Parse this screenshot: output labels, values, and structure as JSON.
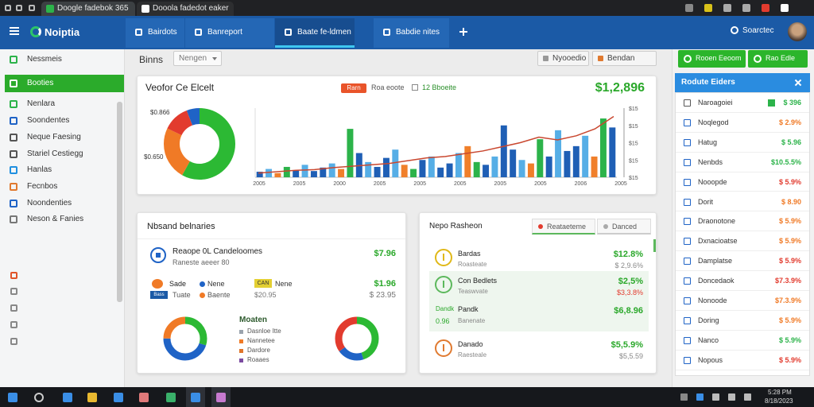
{
  "browser": {
    "tabs": [
      "Doogle fadebok 365",
      "Dooola fadedot eaker"
    ]
  },
  "header": {
    "logo": "Noiptia",
    "tabs": [
      "Bairdots",
      "Banreport",
      "Baate fe-ldmen",
      "Babdie nites"
    ],
    "active_tab": 2,
    "search": "Soarctec"
  },
  "sidebar": {
    "items": [
      "Nessmeis",
      "Booties",
      "Nenlara",
      "Soondentes",
      "Neque Faesing",
      "Stariel Cestiegg",
      "Hanlas",
      "Fecnbos",
      "Noondenties",
      "Neson & Fanies"
    ],
    "active": 1,
    "icon_colors": [
      "#2cb34a",
      "#ffffff",
      "#2cb34a",
      "#1f63c6",
      "#555555",
      "#555555",
      "#1f8fe0",
      "#e07a30",
      "#1f63c6",
      "#777777"
    ]
  },
  "toolbar": {
    "label": "Binns",
    "dropdown": "Nengen",
    "buttons": [
      "Nyooedio",
      "Bendan"
    ]
  },
  "overview": {
    "title": "Veofor Ce Elcelt",
    "legend": [
      "Rarn",
      "Roa eoote",
      "12 Bboeite"
    ],
    "total": "$1,2,896",
    "donut_labels": [
      "$0.866",
      "$0.650"
    ],
    "donut": {
      "values": [
        58,
        24,
        12,
        6
      ],
      "colors": [
        "#2cb934",
        "#f07a26",
        "#e23b2e",
        "#1f63c6"
      ]
    },
    "bars": {
      "values": [
        8,
        12,
        6,
        15,
        10,
        18,
        9,
        14,
        20,
        12,
        70,
        35,
        22,
        15,
        28,
        40,
        18,
        12,
        25,
        30,
        14,
        20,
        35,
        45,
        22,
        18,
        30,
        75,
        40,
        25,
        20,
        55,
        30,
        68,
        38,
        45,
        60,
        30,
        85,
        72
      ],
      "colors": [
        "#1f5fb5",
        "#56aee6",
        "#f07f2a",
        "#2cb34a",
        "#1f5fb5",
        "#56aee6",
        "#1f5fb5"
      ]
    },
    "line": [
      6,
      8,
      10,
      11,
      14,
      16,
      18,
      20,
      24,
      28,
      30,
      34,
      38,
      44,
      50,
      58,
      54,
      60,
      70,
      88
    ],
    "line_color": "#c9472f",
    "ylim": [
      0,
      100
    ],
    "y_labels": [
      "$15",
      "$15",
      "$15",
      "$15",
      "$15"
    ],
    "x_labels": [
      "2005",
      "2005",
      "2000",
      "2005",
      "2005",
      "2005",
      "2005",
      "2005",
      "2006",
      "2005"
    ]
  },
  "balances": {
    "title": "Nbsand belnaries",
    "row1": {
      "name": "Reaope 0L Candeloomes",
      "sub": "Raneste aeeer 80",
      "value": "$7.96"
    },
    "row2": {
      "name": "Sade",
      "tag": "Nene",
      "chip": "CAN",
      "chip_text": "Nene",
      "badge": "Bass",
      "sub": "Tuate",
      "sub2": "Baente",
      "sub3": "$20.95",
      "value": "$1.96",
      "value2": "$ 23.95"
    },
    "legend_title": "Moaten",
    "legend": [
      {
        "name": "Dasnloe Itte",
        "color": "#9aa3ad"
      },
      {
        "name": "Nannetee",
        "color": "#f07a26"
      },
      {
        "name": "Dardore",
        "color": "#e0752a"
      },
      {
        "name": "Roaaes",
        "color": "#7b4aa0"
      }
    ],
    "donut_left": {
      "values": [
        30,
        45,
        25
      ],
      "colors": [
        "#2cb934",
        "#1f63c6",
        "#f07a26"
      ]
    },
    "donut_right": {
      "values": [
        45,
        20,
        35
      ],
      "colors": [
        "#2cb934",
        "#1f63c6",
        "#e23b2e"
      ]
    }
  },
  "history": {
    "title": "Nepo Rasheon",
    "buttons": [
      "Reataeteme",
      "Danced"
    ],
    "rows": [
      {
        "name": "Bardas",
        "sub": "Roasteate",
        "value": "$12.8%",
        "value2": "$ 2,9.6%",
        "value2_color": "#888888",
        "ring": "#e0b818"
      },
      {
        "name": "Con Bedlets",
        "sub": "Teaswvate",
        "value": "$2,5%",
        "value2": "$3,3.8%",
        "value2_color": "#e23b2e",
        "ring": "#5cb85c"
      },
      {
        "name": "Danado",
        "sub": "Raesteale",
        "value": "$5,5.9%",
        "value2": "$5,5.59",
        "value2_color": "#888888",
        "ring": "#e07a30"
      }
    ],
    "extra": {
      "tag": "Dandk",
      "tag2": "0.96",
      "name": "Pandk",
      "sub": "Banenate",
      "value": "$6,8.96"
    }
  },
  "panel": {
    "buttons": [
      "Rooen Eeoom",
      "Rao Edle"
    ],
    "title": "Rodute Eiders",
    "rows": [
      {
        "name": "Naroagoiei",
        "value": "$ 396",
        "color": "#2cb34a"
      },
      {
        "name": "Noqlegod",
        "value": "$ 2.9%",
        "color": "#f07a26"
      },
      {
        "name": "Hatug",
        "value": "$ 5.96",
        "color": "#2cb34a"
      },
      {
        "name": "Nenbds",
        "value": "$10.5.5%",
        "color": "#2cb34a"
      },
      {
        "name": "Nooopde",
        "value": "$ 5.9%",
        "color": "#e23b2e"
      },
      {
        "name": "Dorit",
        "value": "$ 8.90",
        "color": "#f07a26"
      },
      {
        "name": "Draonotone",
        "value": "$ 5.9%",
        "color": "#f07a26"
      },
      {
        "name": "Dxnacioatse",
        "value": "$ 5.9%",
        "color": "#f07a26"
      },
      {
        "name": "Damplatse",
        "value": "$ 5.9%",
        "color": "#e23b2e"
      },
      {
        "name": "Doncedaok",
        "value": "$7.3.9%",
        "color": "#e23b2e"
      },
      {
        "name": "Nonoode",
        "value": "$7.3.9%",
        "color": "#f07a26"
      },
      {
        "name": "Doring",
        "value": "$ 5.9%",
        "color": "#f07a26"
      },
      {
        "name": "Nanco",
        "value": "$ 5.9%",
        "color": "#2cb34a"
      },
      {
        "name": "Nopous",
        "value": "$ 5.9%",
        "color": "#e23b2e"
      }
    ]
  },
  "taskbar": {
    "time": "5:28 PM",
    "date": "8/18/2023"
  }
}
